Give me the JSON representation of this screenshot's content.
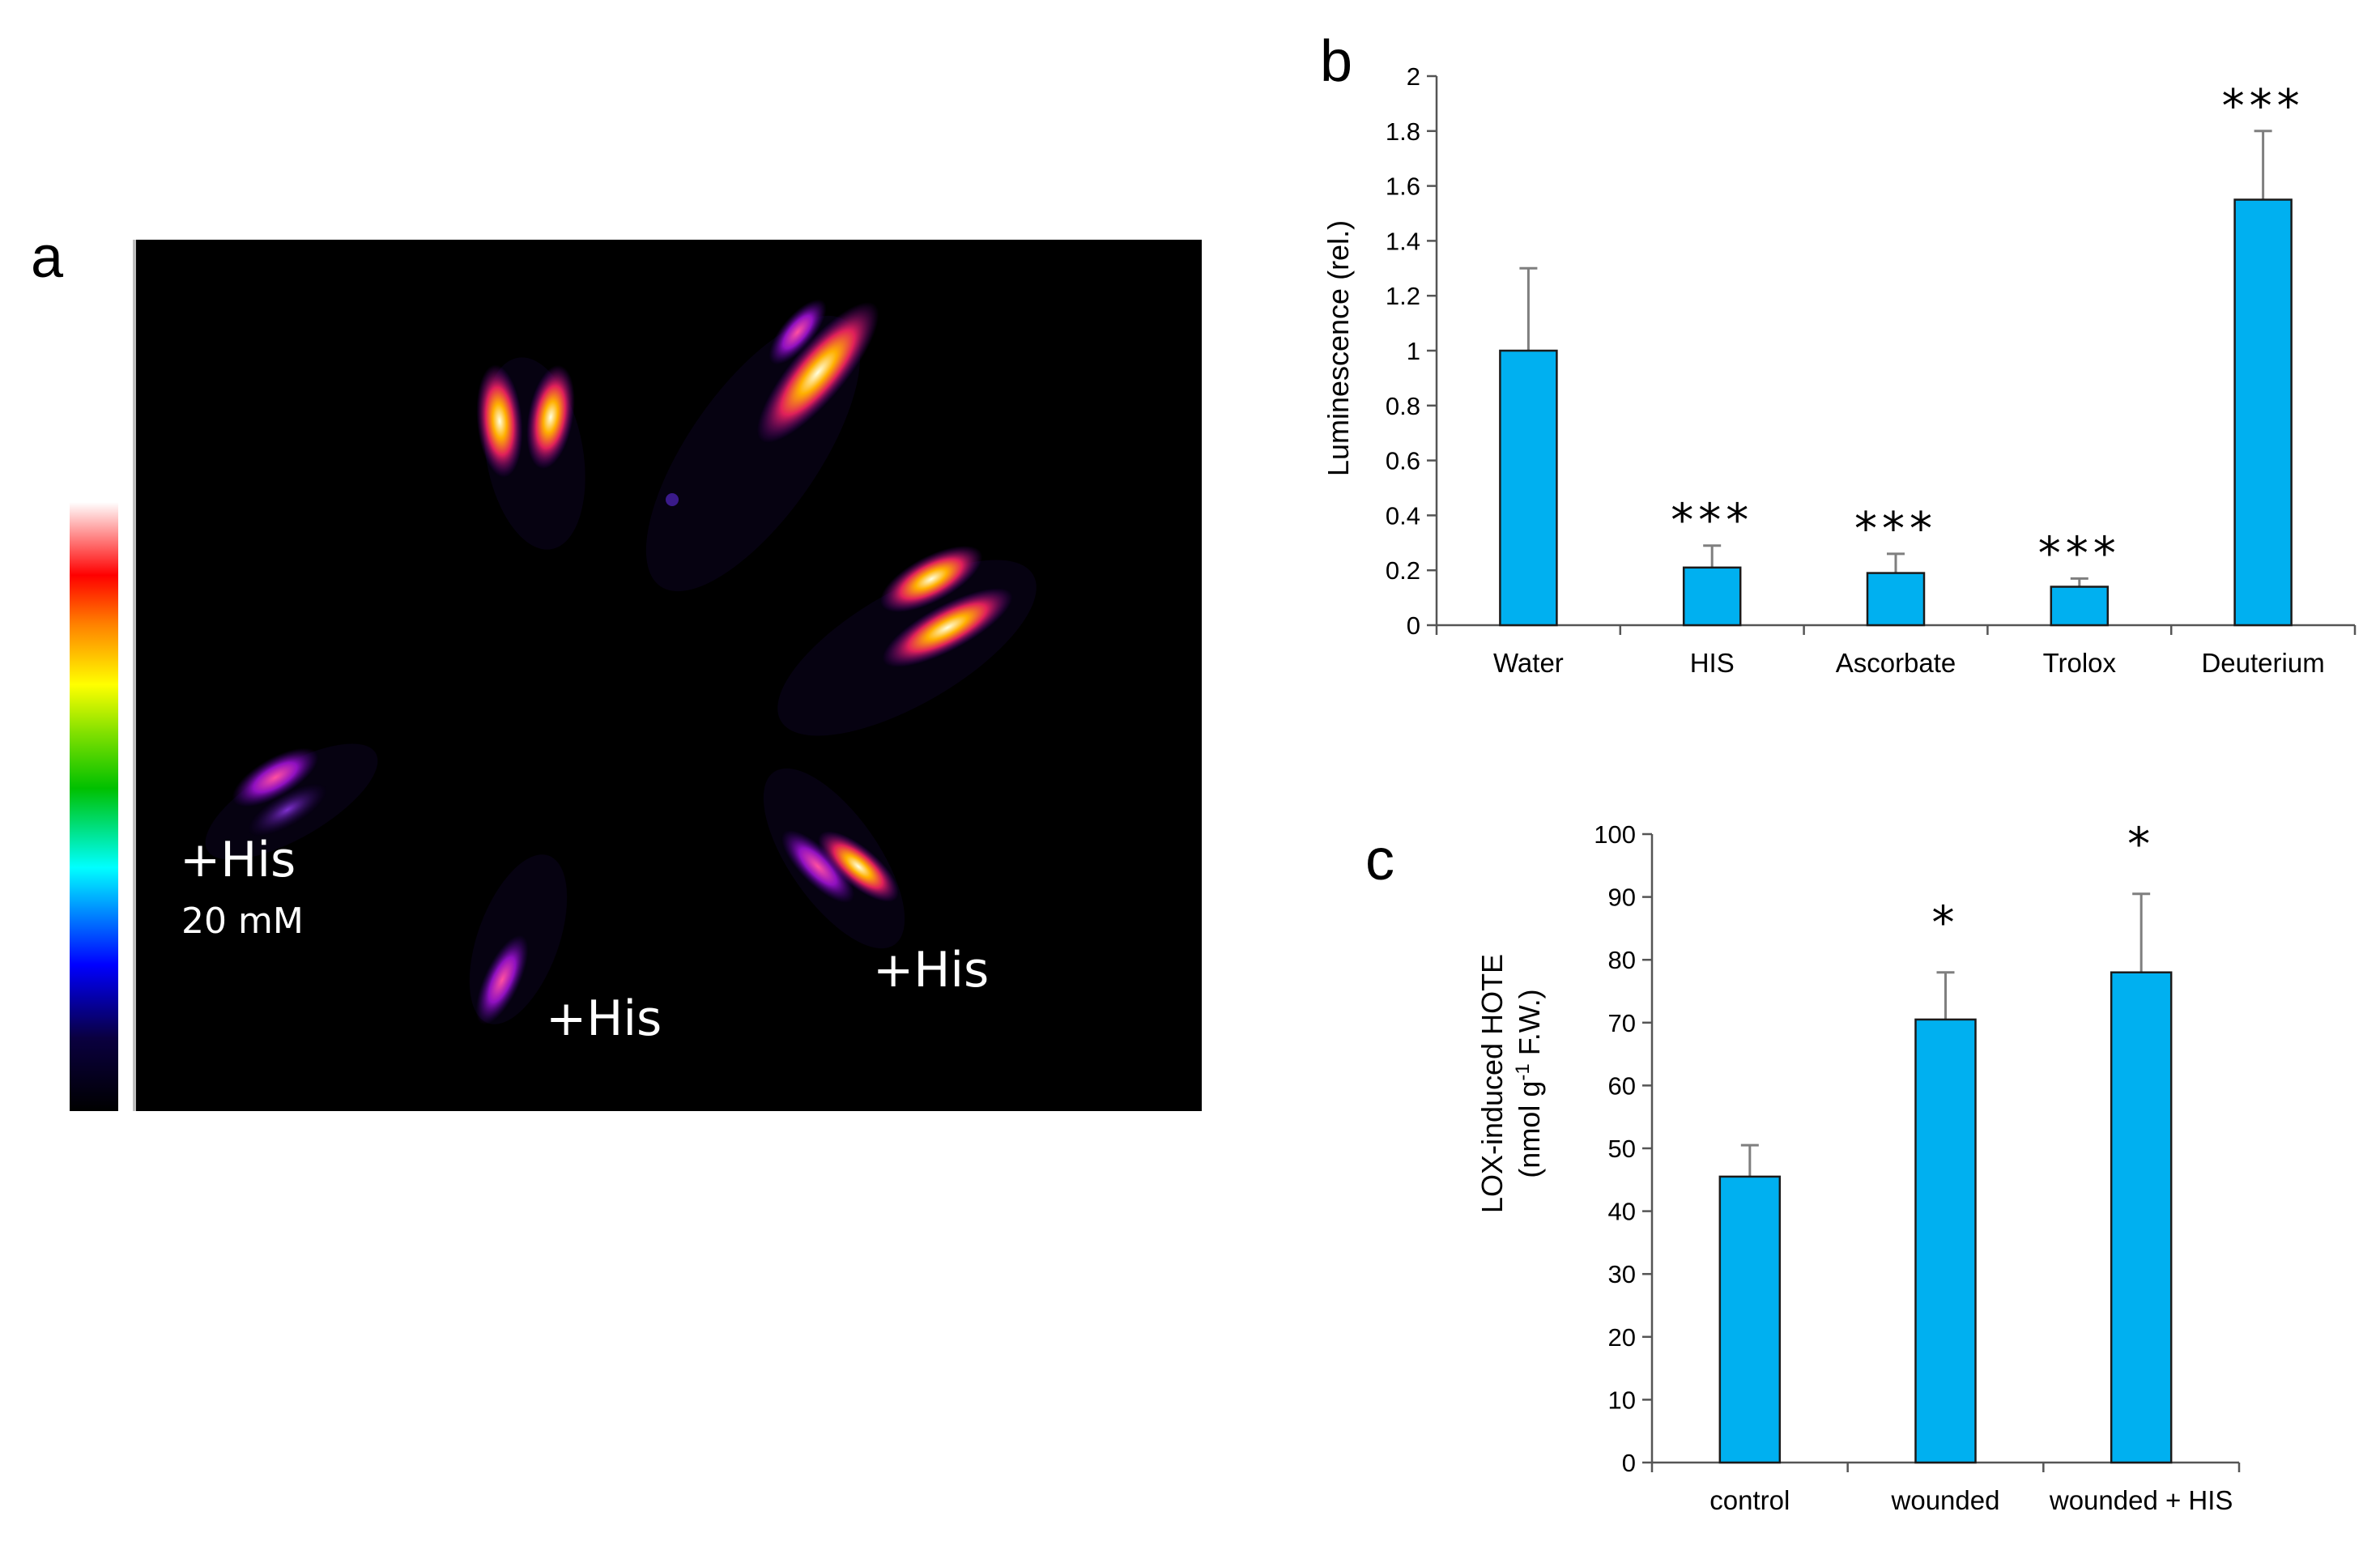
{
  "colors": {
    "bar": "#00b0f0",
    "bar_edge": "#1a1a1a",
    "error": "#7f7f7f",
    "image_bg": "#000000"
  },
  "panel_a": {
    "letter": "a",
    "labels": [
      "+His",
      "20 mM",
      "+His",
      "+His"
    ],
    "colorbar": "fire-rainbow-colorbar"
  },
  "chart_data": [
    {
      "panel": "b",
      "type": "bar",
      "ylabel": "Luminescence  (rel.)",
      "xlabel": "",
      "ylim": [
        0,
        2
      ],
      "yticks": [
        "0",
        "0.2",
        "0.4",
        "0.6",
        "0.8",
        "1",
        "1.2",
        "1.4",
        "1.6",
        "1.8",
        "2"
      ],
      "categories": [
        "Water",
        "HIS",
        "Ascorbate",
        "Trolox",
        "Deuterium"
      ],
      "values": [
        1.0,
        0.21,
        0.19,
        0.14,
        1.55
      ],
      "errors": [
        0.3,
        0.08,
        0.07,
        0.03,
        0.25
      ],
      "significance": [
        "",
        "***",
        "***",
        "***",
        "***"
      ],
      "grid": false,
      "legend": "none"
    },
    {
      "panel": "c",
      "type": "bar",
      "ylabel_line1": "LOX-induced HOTE",
      "ylabel_line2_pre": "(nmol g",
      "ylabel_line2_sup": "-1",
      "ylabel_line2_post": " F.W.)",
      "xlabel": "",
      "ylim": [
        0,
        100
      ],
      "yticks": [
        "0",
        "10",
        "20",
        "30",
        "40",
        "50",
        "60",
        "70",
        "80",
        "90",
        "100"
      ],
      "categories": [
        "control",
        "wounded",
        "wounded + HIS"
      ],
      "values": [
        45.5,
        70.5,
        78
      ],
      "errors": [
        5,
        7.5,
        12.5
      ],
      "significance": [
        "",
        "*",
        "*"
      ],
      "grid": false,
      "legend": "none"
    }
  ]
}
